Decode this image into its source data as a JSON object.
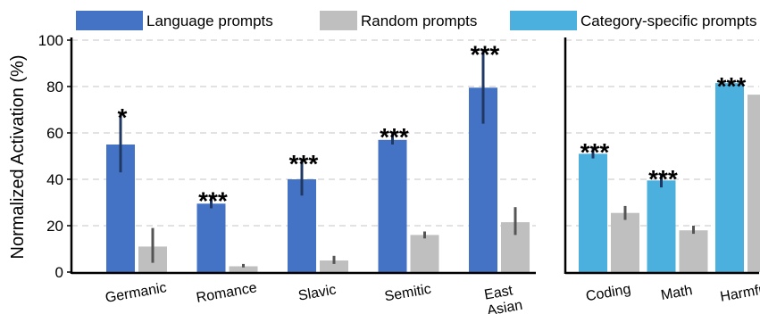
{
  "chart_data": {
    "type": "bar",
    "ylabel": "Normalized Activation (%)",
    "ylim": [
      0,
      100
    ],
    "yticks": [
      "0",
      "20",
      "40",
      "60",
      "80",
      "100"
    ],
    "grid": "horizontal dashed",
    "legend": [
      {
        "label": "Language prompts",
        "color": "#4472c4"
      },
      {
        "label": "Random prompts",
        "color": "#bfbfbf"
      },
      {
        "label": "Category-specific prompts",
        "color": "#4cb0de"
      }
    ],
    "panels": [
      {
        "categories": [
          "Germanic",
          "Romance",
          "Slavic",
          "Semitic",
          "East Asian"
        ],
        "series": [
          {
            "name": "Language prompts",
            "color": "#4472c4",
            "values": [
              55,
              29.5,
              40,
              57,
              79.5
            ],
            "err_low": [
              43,
              27.5,
              33,
              55,
              64
            ],
            "err_high": [
              68.5,
              32.5,
              48.5,
              60,
              95.5
            ]
          },
          {
            "name": "Random prompts",
            "color": "#bfbfbf",
            "values": [
              11,
              2.5,
              5,
              16,
              21.5
            ],
            "err_low": [
              4,
              2,
              3.5,
              14.5,
              16
            ],
            "err_high": [
              19,
              3.5,
              7,
              17.5,
              28
            ]
          }
        ],
        "significance": [
          "*",
          "***",
          "***",
          "***",
          "***"
        ]
      },
      {
        "categories": [
          "Coding",
          "Math",
          "Harmful"
        ],
        "series": [
          {
            "name": "Category-specific prompts",
            "color": "#4cb0de",
            "values": [
              51,
              39.5,
              81.5
            ],
            "err_low": [
              49,
              36.5,
              81
            ],
            "err_high": [
              53.5,
              42,
              82
            ]
          },
          {
            "name": "Random prompts",
            "color": "#bfbfbf",
            "values": [
              25.5,
              18,
              76.5
            ],
            "err_low": [
              22.5,
              16.5,
              75.5
            ],
            "err_high": [
              28.5,
              20,
              77.5
            ]
          }
        ],
        "significance": [
          "***",
          "***",
          "***"
        ]
      }
    ]
  },
  "colors": {
    "errorbar_blue": "#1f3864",
    "errorbar_gray": "#555555",
    "grid": "#d9d9d9"
  }
}
